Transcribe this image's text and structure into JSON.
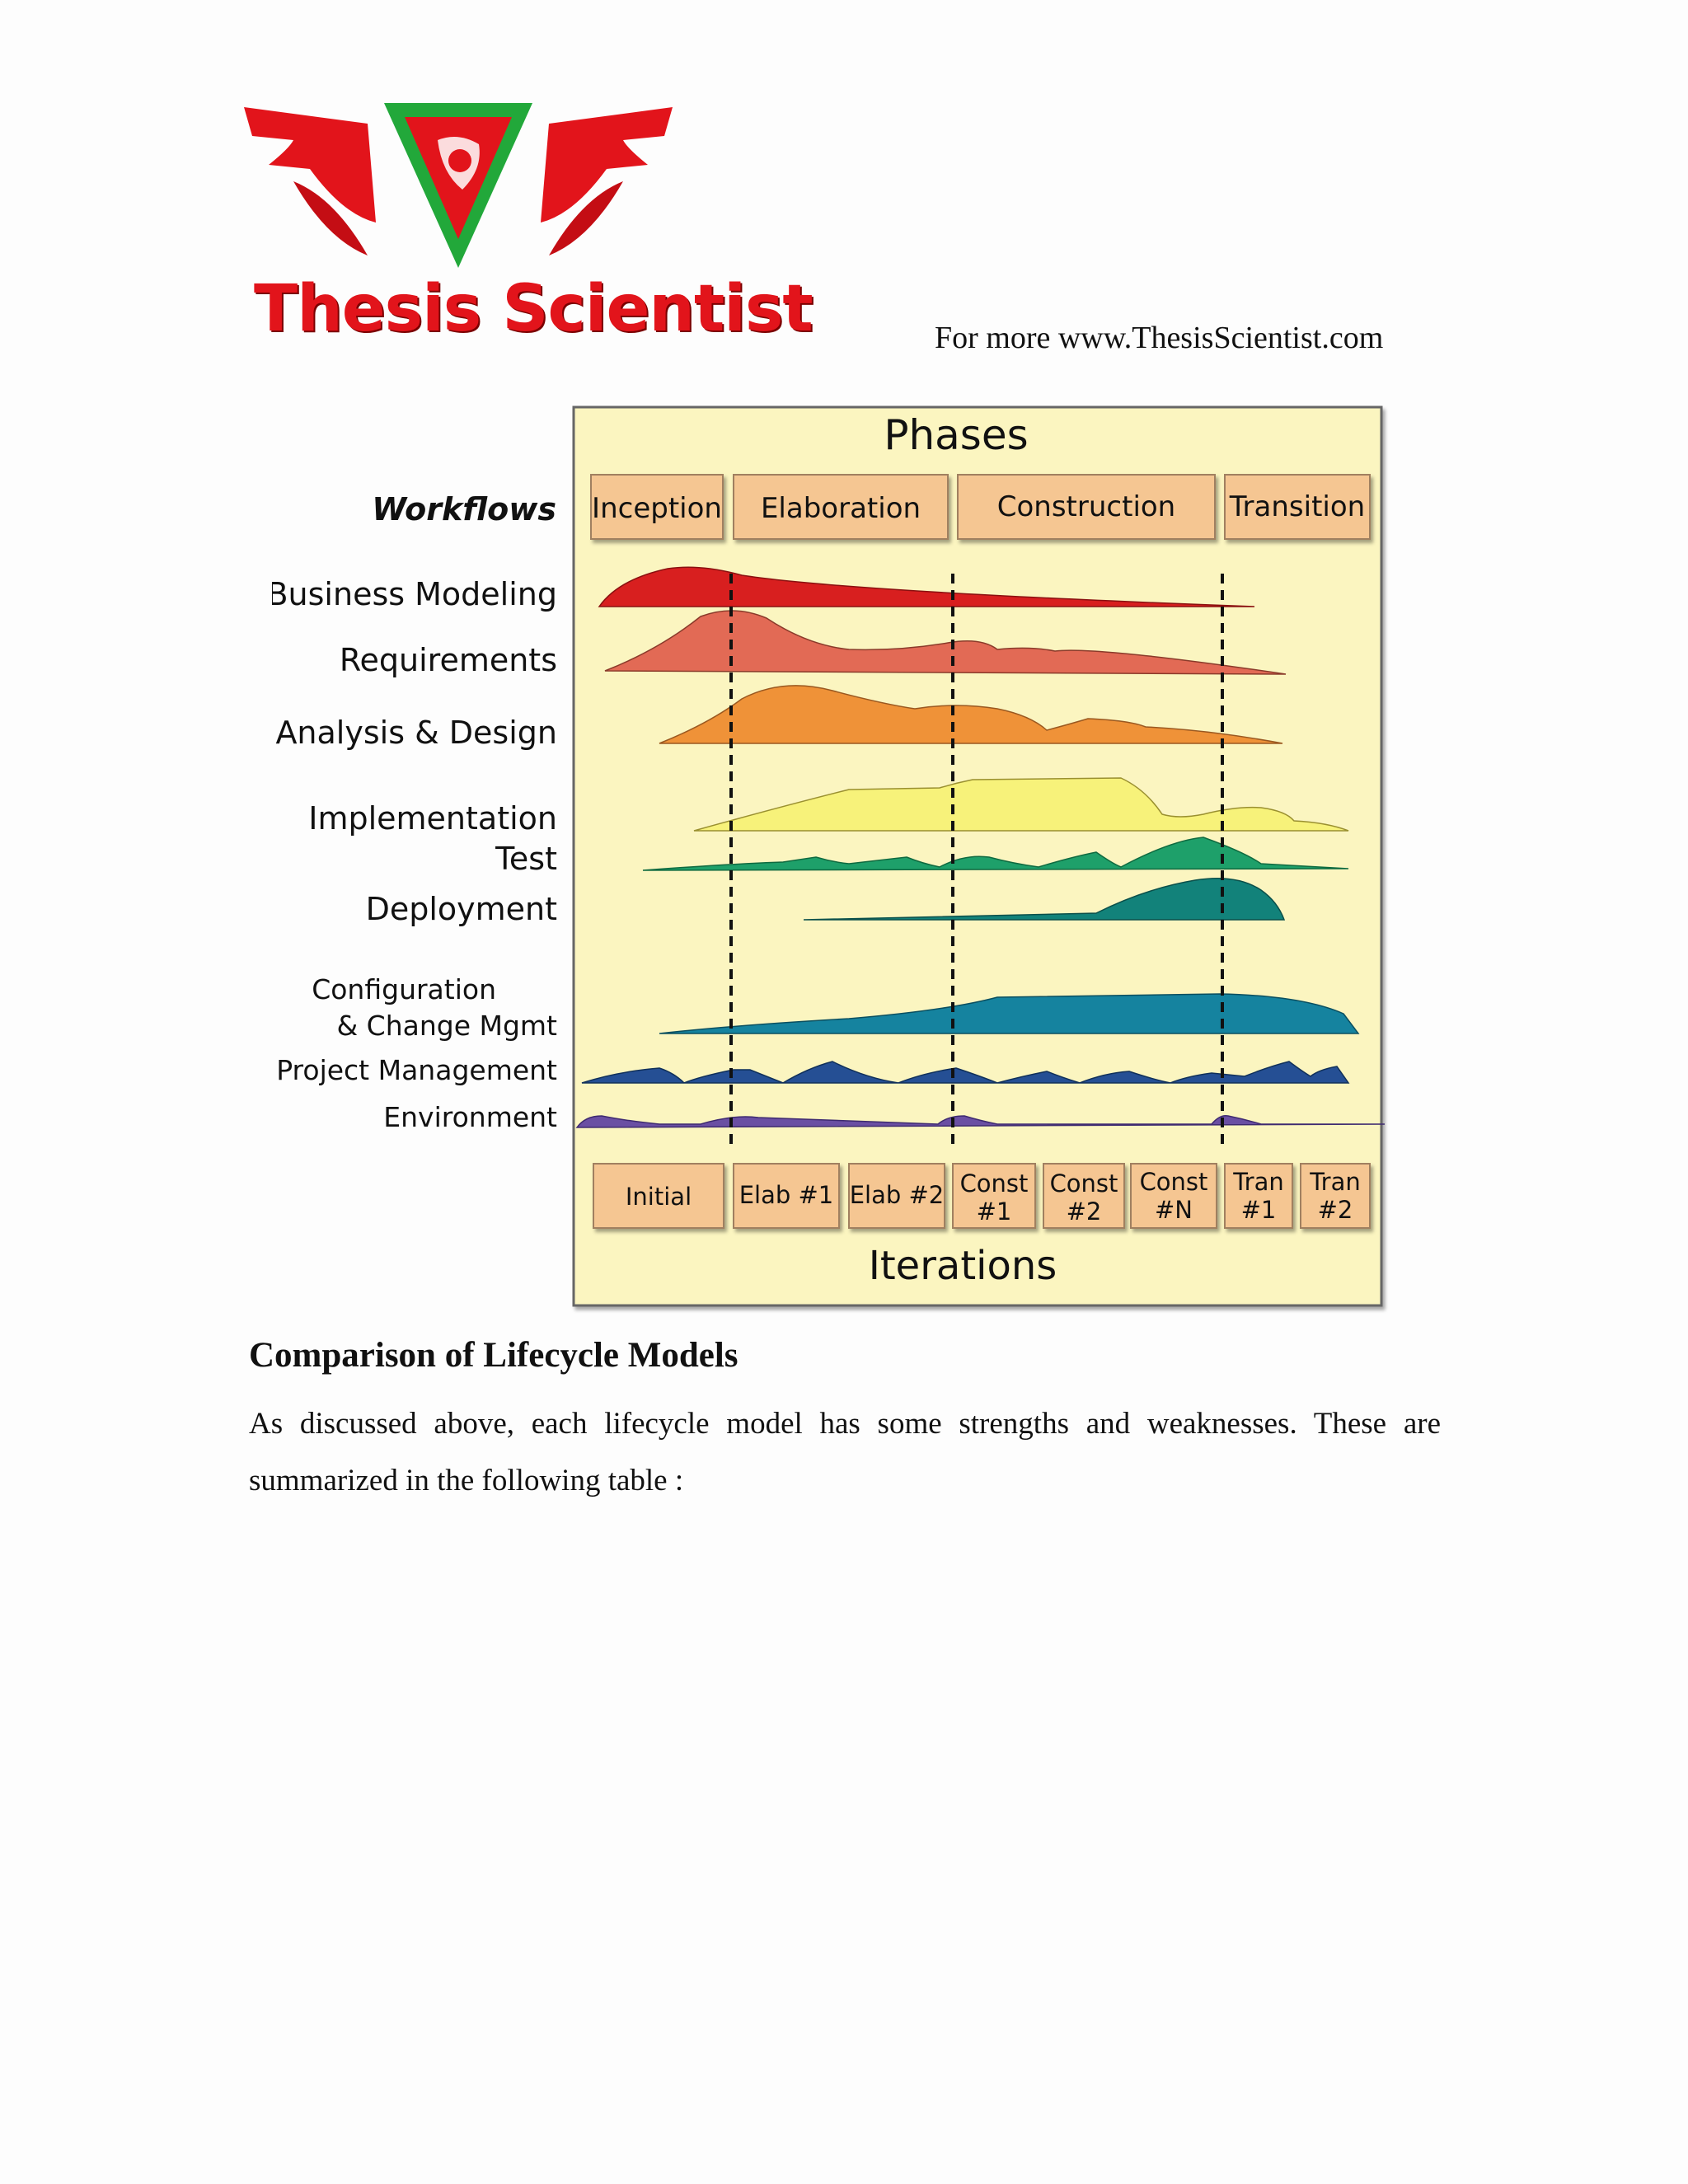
{
  "header": {
    "logo_text": "Thesis Scientist",
    "link_text": "For more  www.ThesisScientist.com"
  },
  "diagram": {
    "phases_title": "Phases",
    "workflows_title": "Workflows",
    "iterations_title": "Iterations",
    "phases": [
      "Inception",
      "Elaboration",
      "Construction",
      "Transition"
    ],
    "workflows": [
      "Business Modeling",
      "Requirements",
      "Analysis & Design",
      "Implementation",
      "Test",
      "Deployment",
      "Configuration",
      "& Change Mgmt",
      "Project Management",
      "Environment"
    ],
    "iterations": [
      [
        "Initial"
      ],
      [
        "Elab #1"
      ],
      [
        "Elab #2"
      ],
      [
        "Const",
        "#1"
      ],
      [
        "Const",
        "#2"
      ],
      [
        "Const",
        "#N"
      ],
      [
        "Tran",
        "#1"
      ],
      [
        "Tran",
        "#2"
      ]
    ],
    "colors": {
      "panel": "#fbf5c0",
      "box": "#f5c692",
      "business": "#d81f1f",
      "requirements": "#e26a55",
      "analysis": "#ef9238",
      "implementation": "#f7f27a",
      "test": "#1ea06a",
      "deployment": "#12827a",
      "config": "#15839f",
      "project": "#254f94",
      "environment": "#6a4fa3"
    }
  },
  "section": {
    "title": "Comparison of Lifecycle Models",
    "paragraph": "As discussed above, each lifecycle model has some strengths and weaknesses. These are summarized in the following table :"
  }
}
